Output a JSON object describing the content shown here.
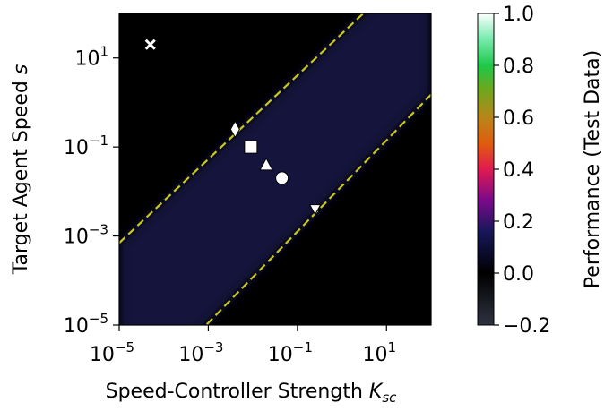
{
  "chart_data": {
    "type": "heatmap",
    "xlabel": "Speed-Controller Strength",
    "xlabel_math": "K",
    "xlabel_sub": "sc",
    "ylabel": "Target Agent Speed",
    "ylabel_math": "s",
    "xscale": "log",
    "yscale": "log",
    "xlim": [
      1e-05,
      100
    ],
    "ylim": [
      1e-05,
      100
    ],
    "x_ticks": [
      {
        "value": 1e-05,
        "base": "10",
        "exp": "−5"
      },
      {
        "value": 0.001,
        "base": "10",
        "exp": "−3"
      },
      {
        "value": 0.1,
        "base": "10",
        "exp": "−1"
      },
      {
        "value": 10,
        "base": "10",
        "exp": "1"
      }
    ],
    "y_ticks": [
      {
        "value": 1e-05,
        "base": "10",
        "exp": "−5"
      },
      {
        "value": 0.001,
        "base": "10",
        "exp": "−3"
      },
      {
        "value": 0.1,
        "base": "10",
        "exp": "−1"
      },
      {
        "value": 10,
        "base": "10",
        "exp": "1"
      }
    ],
    "colorbar": {
      "label": "Performance (Test Data)",
      "range": [
        -0.2,
        1.0
      ],
      "ticks": [
        "−0.2",
        "0.0",
        "0.2",
        "0.4",
        "0.6",
        "0.8",
        "1.0"
      ],
      "tick_values": [
        -0.2,
        0.0,
        0.2,
        0.4,
        0.6,
        0.8,
        1.0
      ]
    },
    "background_value": 0.0,
    "band": {
      "value": 0.08,
      "upper_line": {
        "x1": 1e-05,
        "y1": 0.0007,
        "x2": 100,
        "y2": 2700
      },
      "lower_line": {
        "x1": 1e-05,
        "y1": 1e-07,
        "x2": 100,
        "y2": 1.5
      }
    },
    "line_color": "#c8c81e",
    "markers": [
      {
        "shape": "x",
        "x": 5e-05,
        "y": 20
      },
      {
        "shape": "diamond",
        "x": 0.004,
        "y": 0.25
      },
      {
        "shape": "square",
        "x": 0.009,
        "y": 0.1
      },
      {
        "shape": "triangle-up",
        "x": 0.02,
        "y": 0.04
      },
      {
        "shape": "circle",
        "x": 0.045,
        "y": 0.02
      },
      {
        "shape": "triangle-down",
        "x": 0.25,
        "y": 0.004
      }
    ]
  }
}
